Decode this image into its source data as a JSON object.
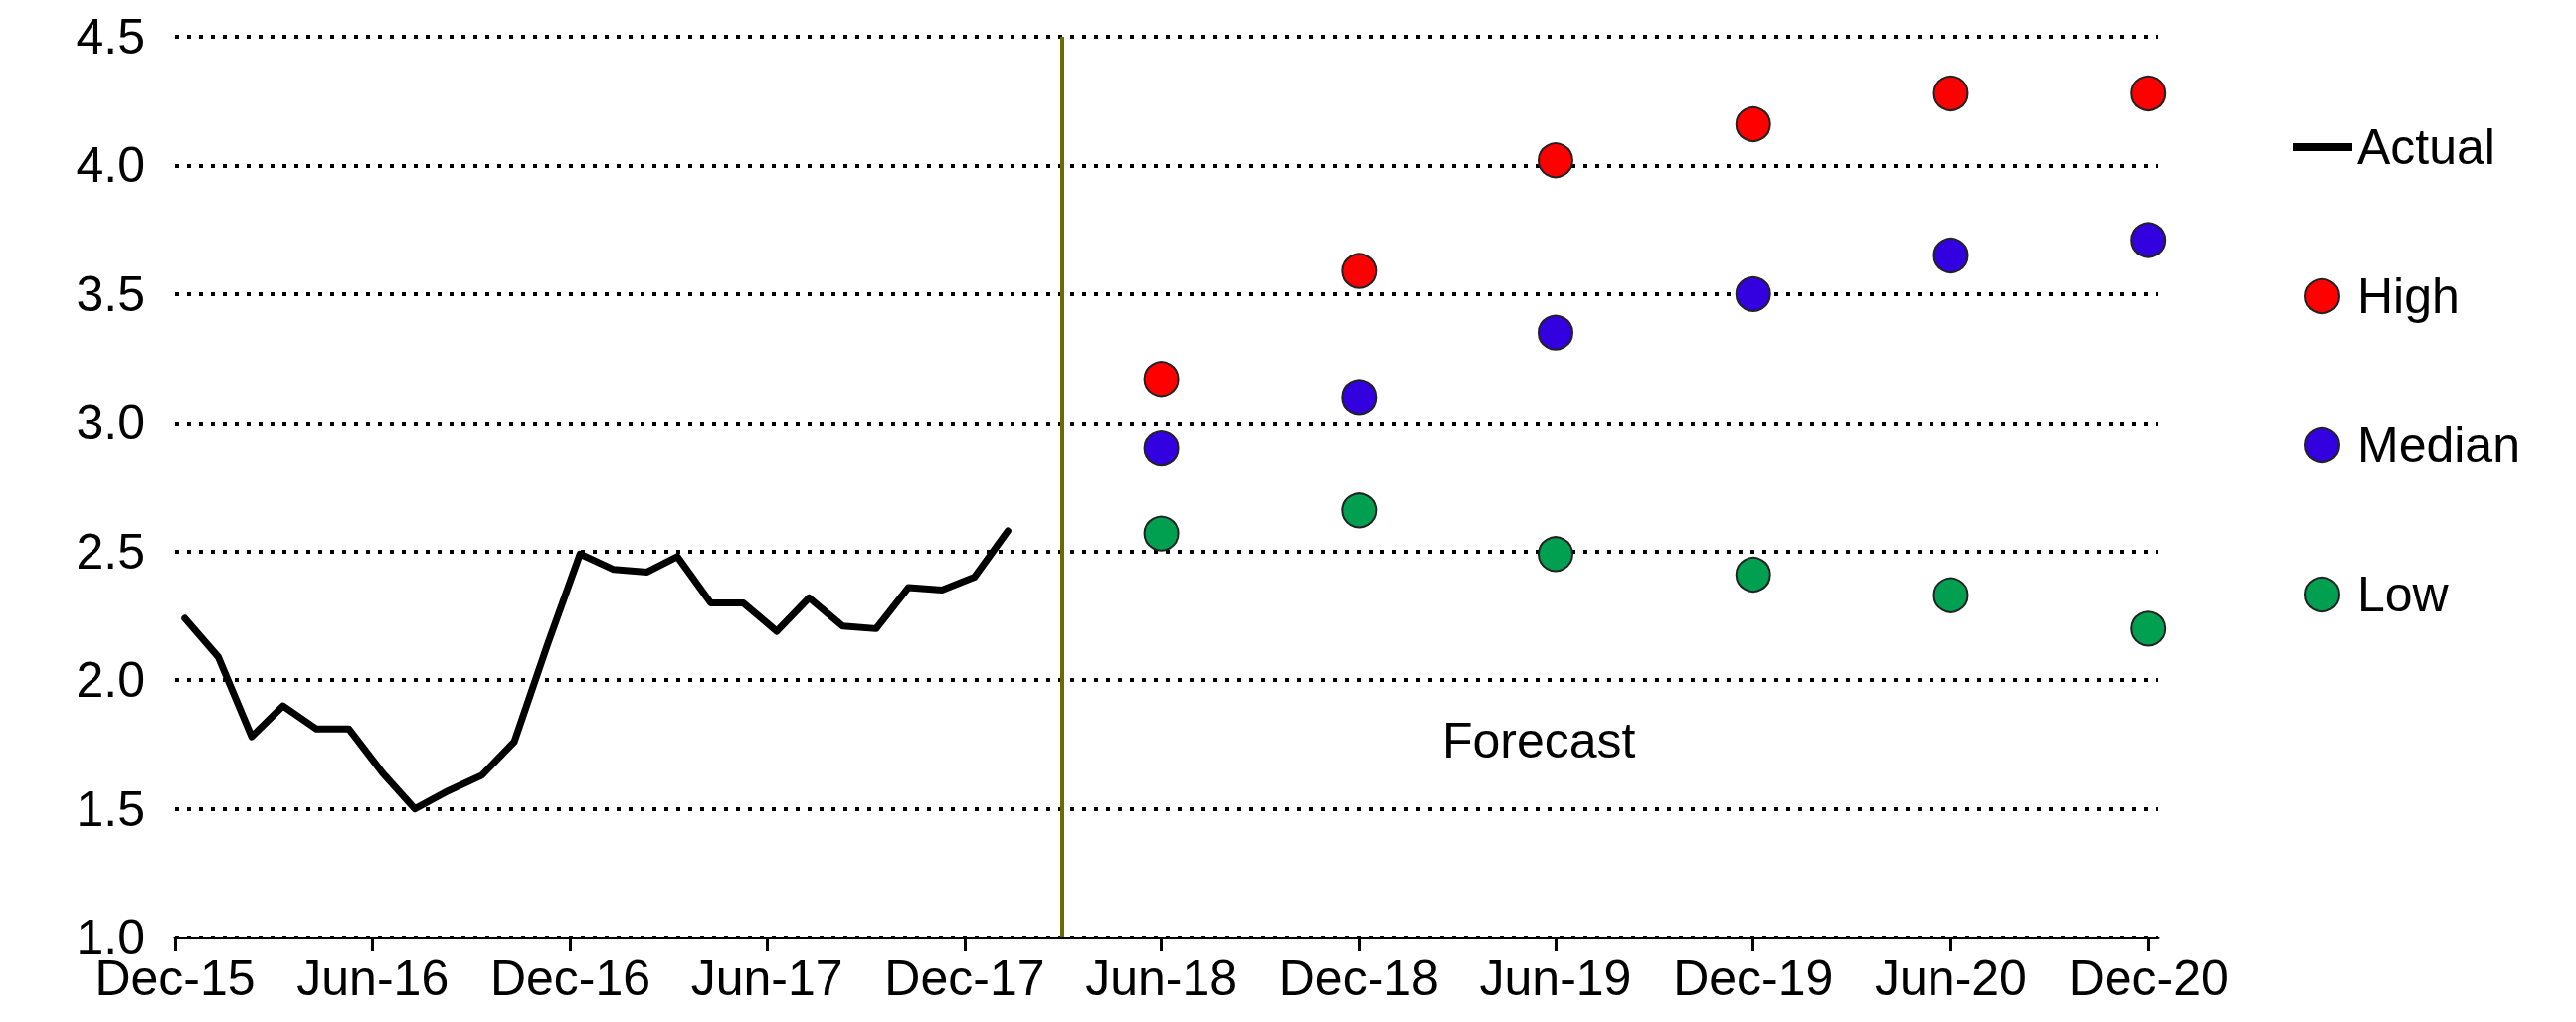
{
  "chart_data": {
    "type": "line",
    "series": [
      {
        "name": "Actual",
        "color": "#000000",
        "marker": "none",
        "x": [
          "2015-12-10",
          "2016-01-10",
          "2016-02-10",
          "2016-03-10",
          "2016-04-10",
          "2016-05-10",
          "2016-06-10",
          "2016-07-10",
          "2016-08-10",
          "2016-09-10",
          "2016-10-10",
          "2016-11-10",
          "2016-12-10",
          "2017-01-10",
          "2017-02-10",
          "2017-03-10",
          "2017-04-10",
          "2017-05-10",
          "2017-06-10",
          "2017-07-10",
          "2017-08-10",
          "2017-09-10",
          "2017-10-10",
          "2017-11-10",
          "2017-12-10",
          "2018-01-10"
        ],
        "values": [
          2.24,
          2.09,
          1.78,
          1.9,
          1.81,
          1.81,
          1.64,
          1.5,
          1.57,
          1.63,
          1.76,
          2.14,
          2.49,
          2.43,
          2.42,
          2.48,
          2.3,
          2.3,
          2.19,
          2.32,
          2.21,
          2.2,
          2.36,
          2.35,
          2.4,
          2.58
        ]
      },
      {
        "name": "High",
        "type": "scatter",
        "color": "#ff0000",
        "marker": "circle",
        "x": [
          "2018-06",
          "2018-12",
          "2019-06",
          "2019-12",
          "2020-06",
          "2020-12"
        ],
        "values": [
          3.17,
          3.59,
          4.02,
          4.16,
          4.28,
          4.28
        ]
      },
      {
        "name": "Median",
        "type": "scatter",
        "color": "#3300e0",
        "marker": "circle",
        "x": [
          "2018-06",
          "2018-12",
          "2019-06",
          "2019-12",
          "2020-06",
          "2020-12"
        ],
        "values": [
          2.9,
          3.1,
          3.35,
          3.5,
          3.65,
          3.71
        ]
      },
      {
        "name": "Low",
        "type": "scatter",
        "color": "#00a050",
        "marker": "circle",
        "x": [
          "2018-06",
          "2018-12",
          "2019-06",
          "2019-12",
          "2020-06",
          "2020-12"
        ],
        "values": [
          2.57,
          2.66,
          2.49,
          2.41,
          2.33,
          2.2
        ]
      }
    ],
    "xlim": [
      "2015-12",
      "2020-12-10"
    ],
    "xticks": [
      {
        "value": "2015-12",
        "label": "Dec-15"
      },
      {
        "value": "2016-06",
        "label": "Jun-16"
      },
      {
        "value": "2016-12",
        "label": "Dec-16"
      },
      {
        "value": "2017-06",
        "label": "Jun-17"
      },
      {
        "value": "2017-12",
        "label": "Dec-17"
      },
      {
        "value": "2018-06",
        "label": "Jun-18"
      },
      {
        "value": "2018-12",
        "label": "Dec-18"
      },
      {
        "value": "2019-06",
        "label": "Jun-19"
      },
      {
        "value": "2019-12",
        "label": "Dec-19"
      },
      {
        "value": "2020-06",
        "label": "Jun-20"
      },
      {
        "value": "2020-12",
        "label": "Dec-20"
      }
    ],
    "ylim": [
      1.0,
      4.5
    ],
    "yticks": [
      {
        "value": 1.0,
        "label": "1.0"
      },
      {
        "value": 1.5,
        "label": "1.5"
      },
      {
        "value": 2.0,
        "label": "2.0"
      },
      {
        "value": 2.5,
        "label": "2.5"
      },
      {
        "value": 3.0,
        "label": "3.0"
      },
      {
        "value": 3.5,
        "label": "3.5"
      },
      {
        "value": 4.0,
        "label": "4.0"
      },
      {
        "value": 4.5,
        "label": "4.5"
      }
    ],
    "grid": "y",
    "line_style": "solid",
    "legend": "right",
    "ref_lines": [
      {
        "axis": "x",
        "value": "2018-03",
        "color": "#6b6b00",
        "line_style": "solid"
      }
    ],
    "annotations": [
      "Forecast"
    ]
  }
}
